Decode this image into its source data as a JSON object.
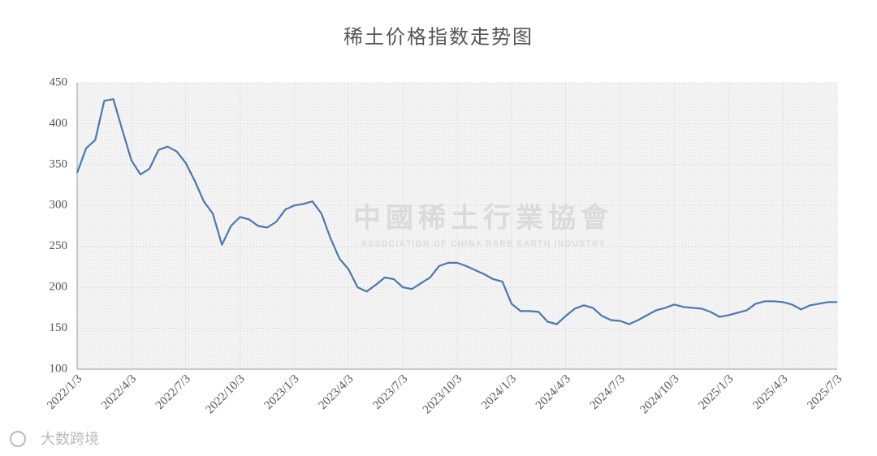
{
  "chart_data": {
    "type": "line",
    "title": "稀土价格指数走势图",
    "watermark": [
      "中國稀土行業協會",
      "ASSOCIATION OF CHINA RARE EARTH INDUSTRY"
    ],
    "source_badge": "大数跨境",
    "categories": [
      "2022/1/3",
      null,
      null,
      null,
      null,
      null,
      "2022/4/3",
      null,
      null,
      null,
      null,
      null,
      "2022/7/3",
      null,
      null,
      null,
      null,
      null,
      "2022/10/3",
      null,
      null,
      null,
      null,
      null,
      "2023/1/3",
      null,
      null,
      null,
      null,
      null,
      "2023/4/3",
      null,
      null,
      null,
      null,
      null,
      "2023/7/3",
      null,
      null,
      null,
      null,
      null,
      "2023/10/3",
      null,
      null,
      null,
      null,
      null,
      "2024/1/3",
      null,
      null,
      null,
      null,
      null,
      "2024/4/3",
      null,
      null,
      null,
      null,
      null,
      "2024/7/3",
      null,
      null,
      null,
      null,
      null,
      "2024/10/3",
      null,
      null,
      null,
      null,
      null,
      "2025/1/3",
      null,
      null,
      null,
      null,
      null,
      "2025/4/3",
      null,
      null,
      null,
      null,
      null,
      "2025/7/3"
    ],
    "values": [
      340,
      370,
      380,
      428,
      430,
      392,
      355,
      338,
      345,
      368,
      372,
      366,
      352,
      330,
      305,
      290,
      252,
      275,
      286,
      283,
      275,
      273,
      280,
      295,
      300,
      302,
      305,
      290,
      260,
      235,
      222,
      200,
      195,
      203,
      212,
      210,
      200,
      198,
      205,
      212,
      226,
      230,
      230,
      226,
      221,
      216,
      210,
      207,
      180,
      171,
      171,
      170,
      158,
      155,
      165,
      174,
      178,
      175,
      165,
      160,
      159,
      155,
      160,
      166,
      172,
      175,
      179,
      176,
      175,
      174,
      170,
      164,
      166,
      169,
      172,
      180,
      183,
      183,
      182,
      179,
      173,
      178,
      180,
      182,
      182
    ],
    "color": "#4a78b0",
    "ylim": [
      100,
      450
    ],
    "yticks": [
      100,
      150,
      200,
      250,
      300,
      350,
      400,
      450
    ],
    "grid": true
  }
}
